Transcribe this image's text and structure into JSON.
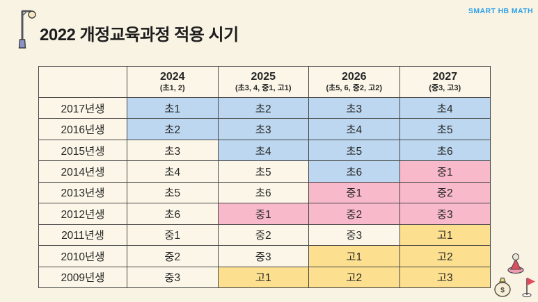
{
  "page": {
    "title": "2022 개정교육과정 적용 시기",
    "logo": "SMART HB MATH"
  },
  "colors": {
    "background": "#f8f3e3",
    "cell_default": "#fbf6e8",
    "cell_blue": "#bcd7ef",
    "cell_pink": "#f8b9cb",
    "cell_yellow": "#fce08f",
    "border": "#454545",
    "logo_blue": "#2da0e8",
    "title_text": "#1d1d1d"
  },
  "table": {
    "corner": "",
    "columns": [
      {
        "year": "2024",
        "sub": "(초1, 2)"
      },
      {
        "year": "2025",
        "sub": "(초3, 4, 중1, 고1)"
      },
      {
        "year": "2026",
        "sub": "(초5, 6, 중2, 고2)"
      },
      {
        "year": "2027",
        "sub": "(중3, 고3)"
      }
    ],
    "rows": [
      {
        "label": "2017년생",
        "cells": [
          {
            "text": "초1",
            "color": "blue"
          },
          {
            "text": "초2",
            "color": "blue"
          },
          {
            "text": "초3",
            "color": "blue"
          },
          {
            "text": "초4",
            "color": "blue"
          }
        ]
      },
      {
        "label": "2016년생",
        "cells": [
          {
            "text": "초2",
            "color": "blue"
          },
          {
            "text": "초3",
            "color": "blue"
          },
          {
            "text": "초4",
            "color": "blue"
          },
          {
            "text": "초5",
            "color": "blue"
          }
        ]
      },
      {
        "label": "2015년생",
        "cells": [
          {
            "text": "초3",
            "color": "default"
          },
          {
            "text": "초4",
            "color": "blue"
          },
          {
            "text": "초5",
            "color": "blue"
          },
          {
            "text": "초6",
            "color": "blue"
          }
        ]
      },
      {
        "label": "2014년생",
        "cells": [
          {
            "text": "초4",
            "color": "default"
          },
          {
            "text": "초5",
            "color": "default"
          },
          {
            "text": "초6",
            "color": "blue"
          },
          {
            "text": "중1",
            "color": "pink"
          }
        ]
      },
      {
        "label": "2013년생",
        "cells": [
          {
            "text": "초5",
            "color": "default"
          },
          {
            "text": "초6",
            "color": "default"
          },
          {
            "text": "중1",
            "color": "pink"
          },
          {
            "text": "중2",
            "color": "pink"
          }
        ]
      },
      {
        "label": "2012년생",
        "cells": [
          {
            "text": "초6",
            "color": "default"
          },
          {
            "text": "중1",
            "color": "pink"
          },
          {
            "text": "중2",
            "color": "pink"
          },
          {
            "text": "중3",
            "color": "pink"
          }
        ]
      },
      {
        "label": "2011년생",
        "cells": [
          {
            "text": "중1",
            "color": "default"
          },
          {
            "text": "중2",
            "color": "default"
          },
          {
            "text": "중3",
            "color": "default"
          },
          {
            "text": "고1",
            "color": "yellow"
          }
        ]
      },
      {
        "label": "2010년생",
        "cells": [
          {
            "text": "중2",
            "color": "default"
          },
          {
            "text": "중3",
            "color": "default"
          },
          {
            "text": "고1",
            "color": "yellow"
          },
          {
            "text": "고2",
            "color": "yellow"
          }
        ]
      },
      {
        "label": "2009년생",
        "cells": [
          {
            "text": "중3",
            "color": "default"
          },
          {
            "text": "고1",
            "color": "yellow"
          },
          {
            "text": "고2",
            "color": "yellow"
          },
          {
            "text": "고3",
            "color": "yellow"
          }
        ]
      }
    ]
  },
  "decorations": {
    "top_left_icon": "street-lamp-icon",
    "bottom_right_icons": [
      "person-on-disc-icon",
      "money-bag-icon",
      "flag-icon"
    ],
    "money_bag_symbol": "$"
  }
}
